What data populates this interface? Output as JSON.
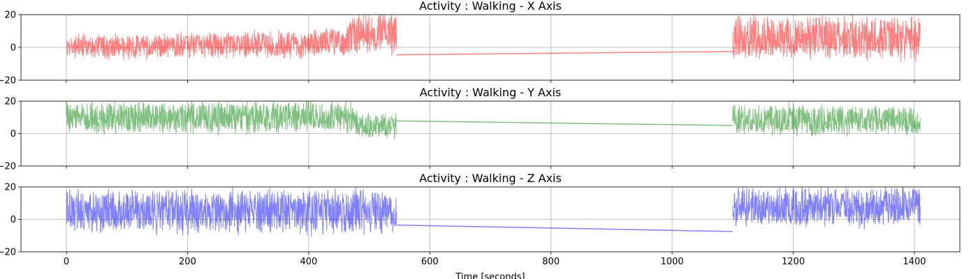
{
  "chart_data": [
    {
      "type": "line",
      "title": "Activity : Walking - X Axis",
      "xlabel": "",
      "ylabel": "",
      "xlim": [
        -75,
        1475
      ],
      "ylim": [
        -20,
        20
      ],
      "yticks": [
        -20,
        0,
        20
      ],
      "xticks": [
        0,
        200,
        400,
        600,
        800,
        1000,
        1200,
        1400
      ],
      "grid": true,
      "color": "#ff0000",
      "alpha": 0.5,
      "series": [
        {
          "name": "X Axis",
          "segments": [
            {
              "t_start": 0,
              "t_end": 545,
              "profile": [
                [
                  0,
                  0.5,
                  6.5
                ],
                [
                  100,
                  0.5,
                  6.5
                ],
                [
                  200,
                  1.0,
                  7
                ],
                [
                  300,
                  1.5,
                  7.5
                ],
                [
                  400,
                  2.0,
                  7.5
                ],
                [
                  460,
                  3.5,
                  8
                ],
                [
                  475,
                  9,
                  11
                ],
                [
                  545,
                  9,
                  11
                ]
              ]
            },
            {
              "t_start": 1100,
              "t_end": 1410,
              "profile": [
                [
                  1100,
                  6,
                  12
                ],
                [
                  1410,
                  6,
                  12
                ]
              ]
            }
          ],
          "bridge": [
            [
              545,
              -4.5
            ],
            [
              1100,
              -2.5
            ]
          ]
        }
      ]
    },
    {
      "type": "line",
      "title": "Activity : Walking - Y Axis",
      "xlabel": "",
      "ylabel": "",
      "xlim": [
        -75,
        1475
      ],
      "ylim": [
        -20,
        20
      ],
      "yticks": [
        -20,
        0,
        20
      ],
      "xticks": [
        0,
        200,
        400,
        600,
        800,
        1000,
        1200,
        1400
      ],
      "grid": true,
      "color": "#008000",
      "alpha": 0.5,
      "series": [
        {
          "name": "Y Axis",
          "segments": [
            {
              "t_start": 0,
              "t_end": 545,
              "profile": [
                [
                  0,
                  10,
                  9
                ],
                [
                  470,
                  10,
                  9
                ],
                [
                  490,
                  5,
                  7
                ],
                [
                  545,
                  5,
                  7
                ]
              ]
            },
            {
              "t_start": 1100,
              "t_end": 1410,
              "profile": [
                [
                  1100,
                  9,
                  9
                ],
                [
                  1410,
                  8,
                  8
                ]
              ]
            }
          ],
          "bridge": [
            [
              545,
              7.8
            ],
            [
              1100,
              5.0
            ]
          ]
        }
      ]
    },
    {
      "type": "line",
      "title": "Activity : Walking - Z Axis",
      "xlabel": "Time [seconds]",
      "ylabel": "",
      "xlim": [
        -75,
        1475
      ],
      "ylim": [
        -20,
        20
      ],
      "yticks": [
        -20,
        0,
        20
      ],
      "xticks": [
        0,
        200,
        400,
        600,
        800,
        1000,
        1200,
        1400
      ],
      "grid": true,
      "color": "#0000ff",
      "alpha": 0.5,
      "series": [
        {
          "name": "Z Axis",
          "segments": [
            {
              "t_start": 0,
              "t_end": 545,
              "profile": [
                [
                  0,
                  5,
                  12
                ],
                [
                  545,
                  5,
                  12
                ]
              ]
            },
            {
              "t_start": 1100,
              "t_end": 1410,
              "profile": [
                [
                  1100,
                  8,
                  11
                ],
                [
                  1410,
                  8,
                  11
                ]
              ]
            }
          ],
          "bridge": [
            [
              545,
              -3.5
            ],
            [
              1100,
              -7.5
            ]
          ]
        }
      ]
    }
  ]
}
